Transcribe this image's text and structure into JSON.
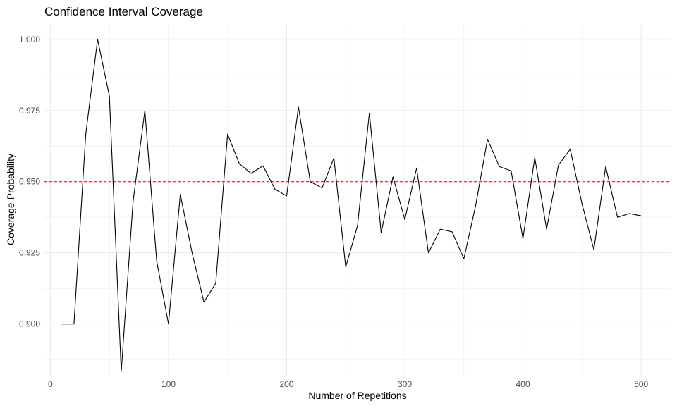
{
  "chart_data": {
    "type": "line",
    "title": "Confidence Interval Coverage",
    "xlabel": "Number of Repetitions",
    "ylabel": "Coverage Probability",
    "xlim": [
      -5,
      525
    ],
    "ylim": [
      0.8816,
      1.0049
    ],
    "x_ticks": [
      0,
      100,
      200,
      300,
      400,
      500
    ],
    "x_tick_labels": [
      "0",
      "100",
      "200",
      "300",
      "400",
      "500"
    ],
    "y_ticks": [
      0.9,
      0.925,
      0.95,
      0.975,
      1.0
    ],
    "y_tick_labels": [
      "0.900",
      "0.925",
      "0.950",
      "0.975",
      "1.000"
    ],
    "grid": true,
    "reference_line": {
      "y": 0.95,
      "color": "#c8283c",
      "style": "dashed"
    },
    "series": [
      {
        "color": "#000000",
        "x": [
          10,
          20,
          30,
          40,
          50,
          60,
          70,
          80,
          90,
          100,
          110,
          120,
          130,
          140,
          150,
          160,
          170,
          180,
          190,
          200,
          210,
          220,
          230,
          240,
          250,
          260,
          270,
          280,
          290,
          300,
          310,
          320,
          330,
          340,
          350,
          360,
          370,
          380,
          390,
          400,
          410,
          420,
          430,
          440,
          450,
          460,
          470,
          480,
          490,
          500
        ],
        "y": [
          0.9,
          0.9,
          0.9667,
          1.0,
          0.98,
          0.8833,
          0.9429,
          0.975,
          0.9222,
          0.9,
          0.9455,
          0.925,
          0.9077,
          0.9143,
          0.9667,
          0.9563,
          0.9529,
          0.9556,
          0.9474,
          0.945,
          0.9762,
          0.95,
          0.9478,
          0.9583,
          0.92,
          0.9346,
          0.9741,
          0.9321,
          0.9517,
          0.9367,
          0.9548,
          0.925,
          0.9333,
          0.9324,
          0.9229,
          0.9417,
          0.9649,
          0.9553,
          0.9538,
          0.93,
          0.9585,
          0.9333,
          0.9558,
          0.9614,
          0.9422,
          0.9261,
          0.9553,
          0.9375,
          0.9388,
          0.938
        ]
      }
    ]
  }
}
